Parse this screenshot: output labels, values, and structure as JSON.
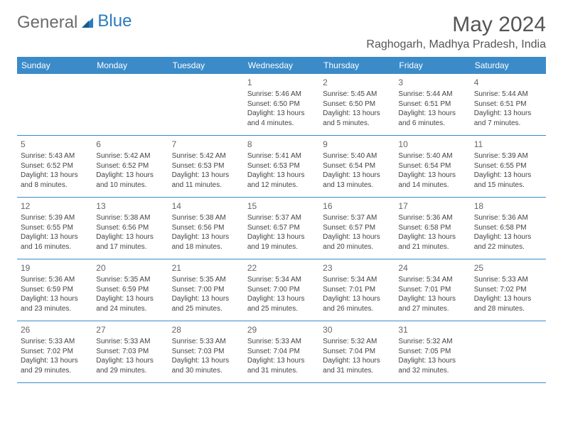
{
  "logo": {
    "word1": "General",
    "word2": "Blue"
  },
  "title": "May 2024",
  "location": "Raghogarh, Madhya Pradesh, India",
  "colors": {
    "header_bg": "#3b8bc9",
    "header_text": "#ffffff",
    "border": "#3b8bc9",
    "text": "#444444",
    "title": "#555555",
    "logo_gray": "#6b6b6b",
    "logo_blue": "#2b7bbf",
    "page_bg": "#ffffff"
  },
  "weekdays": [
    "Sunday",
    "Monday",
    "Tuesday",
    "Wednesday",
    "Thursday",
    "Friday",
    "Saturday"
  ],
  "weeks": [
    [
      null,
      null,
      null,
      {
        "n": "1",
        "sr": "5:46 AM",
        "ss": "6:50 PM",
        "dl": "13 hours and 4 minutes."
      },
      {
        "n": "2",
        "sr": "5:45 AM",
        "ss": "6:50 PM",
        "dl": "13 hours and 5 minutes."
      },
      {
        "n": "3",
        "sr": "5:44 AM",
        "ss": "6:51 PM",
        "dl": "13 hours and 6 minutes."
      },
      {
        "n": "4",
        "sr": "5:44 AM",
        "ss": "6:51 PM",
        "dl": "13 hours and 7 minutes."
      }
    ],
    [
      {
        "n": "5",
        "sr": "5:43 AM",
        "ss": "6:52 PM",
        "dl": "13 hours and 8 minutes."
      },
      {
        "n": "6",
        "sr": "5:42 AM",
        "ss": "6:52 PM",
        "dl": "13 hours and 10 minutes."
      },
      {
        "n": "7",
        "sr": "5:42 AM",
        "ss": "6:53 PM",
        "dl": "13 hours and 11 minutes."
      },
      {
        "n": "8",
        "sr": "5:41 AM",
        "ss": "6:53 PM",
        "dl": "13 hours and 12 minutes."
      },
      {
        "n": "9",
        "sr": "5:40 AM",
        "ss": "6:54 PM",
        "dl": "13 hours and 13 minutes."
      },
      {
        "n": "10",
        "sr": "5:40 AM",
        "ss": "6:54 PM",
        "dl": "13 hours and 14 minutes."
      },
      {
        "n": "11",
        "sr": "5:39 AM",
        "ss": "6:55 PM",
        "dl": "13 hours and 15 minutes."
      }
    ],
    [
      {
        "n": "12",
        "sr": "5:39 AM",
        "ss": "6:55 PM",
        "dl": "13 hours and 16 minutes."
      },
      {
        "n": "13",
        "sr": "5:38 AM",
        "ss": "6:56 PM",
        "dl": "13 hours and 17 minutes."
      },
      {
        "n": "14",
        "sr": "5:38 AM",
        "ss": "6:56 PM",
        "dl": "13 hours and 18 minutes."
      },
      {
        "n": "15",
        "sr": "5:37 AM",
        "ss": "6:57 PM",
        "dl": "13 hours and 19 minutes."
      },
      {
        "n": "16",
        "sr": "5:37 AM",
        "ss": "6:57 PM",
        "dl": "13 hours and 20 minutes."
      },
      {
        "n": "17",
        "sr": "5:36 AM",
        "ss": "6:58 PM",
        "dl": "13 hours and 21 minutes."
      },
      {
        "n": "18",
        "sr": "5:36 AM",
        "ss": "6:58 PM",
        "dl": "13 hours and 22 minutes."
      }
    ],
    [
      {
        "n": "19",
        "sr": "5:36 AM",
        "ss": "6:59 PM",
        "dl": "13 hours and 23 minutes."
      },
      {
        "n": "20",
        "sr": "5:35 AM",
        "ss": "6:59 PM",
        "dl": "13 hours and 24 minutes."
      },
      {
        "n": "21",
        "sr": "5:35 AM",
        "ss": "7:00 PM",
        "dl": "13 hours and 25 minutes."
      },
      {
        "n": "22",
        "sr": "5:34 AM",
        "ss": "7:00 PM",
        "dl": "13 hours and 25 minutes."
      },
      {
        "n": "23",
        "sr": "5:34 AM",
        "ss": "7:01 PM",
        "dl": "13 hours and 26 minutes."
      },
      {
        "n": "24",
        "sr": "5:34 AM",
        "ss": "7:01 PM",
        "dl": "13 hours and 27 minutes."
      },
      {
        "n": "25",
        "sr": "5:33 AM",
        "ss": "7:02 PM",
        "dl": "13 hours and 28 minutes."
      }
    ],
    [
      {
        "n": "26",
        "sr": "5:33 AM",
        "ss": "7:02 PM",
        "dl": "13 hours and 29 minutes."
      },
      {
        "n": "27",
        "sr": "5:33 AM",
        "ss": "7:03 PM",
        "dl": "13 hours and 29 minutes."
      },
      {
        "n": "28",
        "sr": "5:33 AM",
        "ss": "7:03 PM",
        "dl": "13 hours and 30 minutes."
      },
      {
        "n": "29",
        "sr": "5:33 AM",
        "ss": "7:04 PM",
        "dl": "13 hours and 31 minutes."
      },
      {
        "n": "30",
        "sr": "5:32 AM",
        "ss": "7:04 PM",
        "dl": "13 hours and 31 minutes."
      },
      {
        "n": "31",
        "sr": "5:32 AM",
        "ss": "7:05 PM",
        "dl": "13 hours and 32 minutes."
      },
      null
    ]
  ],
  "labels": {
    "sunrise": "Sunrise:",
    "sunset": "Sunset:",
    "daylight": "Daylight:"
  }
}
